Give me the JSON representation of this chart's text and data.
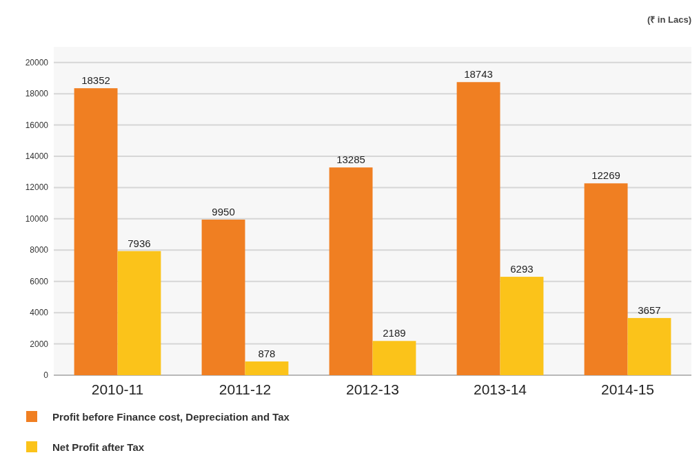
{
  "chart_data": {
    "type": "bar",
    "categories": [
      "2010-11",
      "2011-12",
      "2012-13",
      "2013-14",
      "2014-15"
    ],
    "series": [
      {
        "name": "Profit before Finance cost, Depreciation and Tax",
        "color": "#f07f22",
        "values": [
          18352,
          9950,
          13285,
          18743,
          12269
        ]
      },
      {
        "name": "Net Profit after Tax",
        "color": "#fbc31a",
        "values": [
          7936,
          878,
          2189,
          6293,
          3657
        ]
      }
    ],
    "ylim": [
      0,
      21000
    ],
    "yticks": [
      0,
      2000,
      4000,
      6000,
      8000,
      10000,
      12000,
      14000,
      16000,
      18000,
      20000
    ],
    "grid": "y",
    "legend": "bottom left",
    "data_labels": true,
    "annotations": [
      "(₹ in Lacs)"
    ]
  }
}
